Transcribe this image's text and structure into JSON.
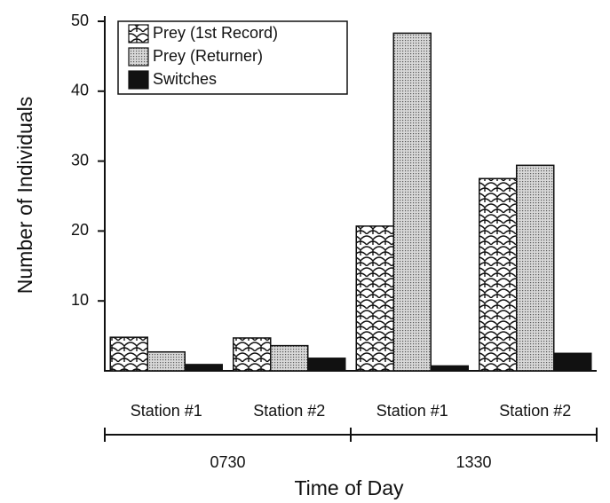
{
  "chart_data": {
    "type": "bar",
    "y_label": "Number of Individuals",
    "x_label": "Time of Day",
    "categories": [
      "Station #1",
      "Station #2",
      "Station #1",
      "Station #2"
    ],
    "groups": [
      "0730",
      "1330"
    ],
    "series": [
      {
        "name": "Prey (1st Record)",
        "color": "#111111",
        "pattern": "scales",
        "values": [
          4.8,
          4.7,
          20.7,
          27.5
        ]
      },
      {
        "name": "Prey (Returner)",
        "color": "#111111",
        "pattern": "dots",
        "values": [
          2.7,
          3.6,
          48.3,
          29.4
        ]
      },
      {
        "name": "Switches",
        "color": "#111111",
        "pattern": "solid",
        "values": [
          0.9,
          1.8,
          0.7,
          2.5
        ]
      }
    ],
    "ylim": [
      0,
      50
    ],
    "yticks": [
      10,
      20,
      30,
      40,
      50
    ],
    "grid": false,
    "legend": "upper left"
  }
}
